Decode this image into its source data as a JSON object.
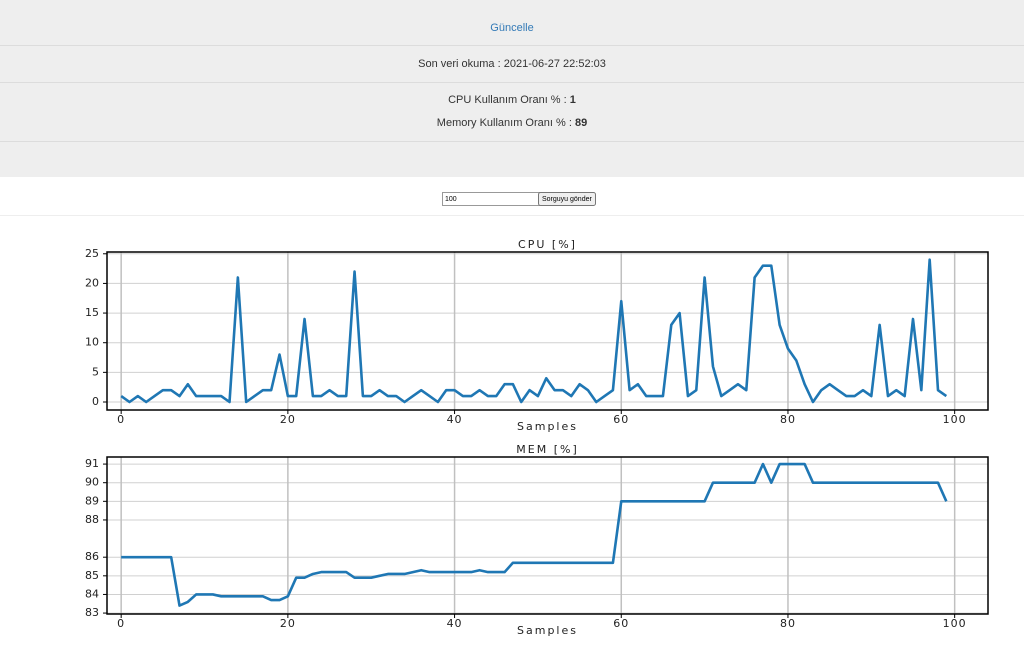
{
  "header": {
    "refresh": "Güncelle",
    "last_read": "Son veri okuma : 2021-06-27 22:52:03",
    "cpu_label": "CPU Kullanım Oranı % :",
    "cpu_value": 1,
    "mem_label": "Memory Kullanım Oranı % :",
    "mem_value": 89
  },
  "form": {
    "input_value": "100",
    "button": "Sorguyu gönder"
  },
  "chart_data": [
    {
      "type": "line",
      "title": "CPU [%]",
      "xlabel": "Samples",
      "color": "#1f77b4",
      "grid": true,
      "x": [
        0,
        1,
        2,
        3,
        4,
        5,
        6,
        7,
        8,
        9,
        10,
        11,
        12,
        13,
        14,
        15,
        16,
        17,
        18,
        19,
        20,
        21,
        22,
        23,
        24,
        25,
        26,
        27,
        28,
        29,
        30,
        31,
        32,
        33,
        34,
        35,
        36,
        37,
        38,
        39,
        40,
        41,
        42,
        43,
        44,
        45,
        46,
        47,
        48,
        49,
        50,
        51,
        52,
        53,
        54,
        55,
        56,
        57,
        58,
        59,
        60,
        61,
        62,
        63,
        64,
        65,
        66,
        67,
        68,
        69,
        70,
        71,
        72,
        73,
        74,
        75,
        76,
        77,
        78,
        79,
        80,
        81,
        82,
        83,
        84,
        85,
        86,
        87,
        88,
        89,
        90,
        91,
        92,
        93,
        94,
        95,
        96,
        97,
        98,
        99
      ],
      "values": [
        1,
        0,
        1,
        0,
        1,
        2,
        2,
        1,
        3,
        1,
        1,
        1,
        1,
        0,
        21,
        0,
        1,
        2,
        2,
        8,
        1,
        1,
        14,
        1,
        1,
        2,
        1,
        1,
        22,
        1,
        1,
        2,
        1,
        1,
        0,
        1,
        2,
        1,
        0,
        2,
        2,
        1,
        1,
        2,
        1,
        1,
        3,
        3,
        0,
        2,
        1,
        4,
        2,
        2,
        1,
        3,
        2,
        0,
        1,
        2,
        17,
        2,
        3,
        1,
        1,
        1,
        13,
        15,
        1,
        2,
        21,
        6,
        1,
        2,
        3,
        2,
        21,
        23,
        23,
        13,
        9,
        7,
        3,
        0,
        2,
        3,
        2,
        1,
        1,
        2,
        1,
        13,
        1,
        2,
        1,
        14,
        2,
        24,
        2,
        1
      ],
      "xlim": [
        -1.7,
        104
      ],
      "ylim": [
        -1.35,
        25.3
      ],
      "xticks": [
        0,
        20,
        40,
        60,
        80,
        100
      ],
      "yticks": [
        0,
        5,
        10,
        15,
        20,
        25
      ]
    },
    {
      "type": "line",
      "title": "MEM [%]",
      "xlabel": "Samples",
      "color": "#1f77b4",
      "grid": true,
      "x": [
        0,
        1,
        2,
        3,
        4,
        5,
        6,
        7,
        8,
        9,
        10,
        11,
        12,
        13,
        14,
        15,
        16,
        17,
        18,
        19,
        20,
        21,
        22,
        23,
        24,
        25,
        26,
        27,
        28,
        29,
        30,
        31,
        32,
        33,
        34,
        35,
        36,
        37,
        38,
        39,
        40,
        41,
        42,
        43,
        44,
        45,
        46,
        47,
        48,
        49,
        50,
        51,
        52,
        53,
        54,
        55,
        56,
        57,
        58,
        59,
        60,
        61,
        62,
        63,
        64,
        65,
        66,
        67,
        68,
        69,
        70,
        71,
        72,
        73,
        74,
        75,
        76,
        77,
        78,
        79,
        80,
        81,
        82,
        83,
        84,
        85,
        86,
        87,
        88,
        89,
        90,
        91,
        92,
        93,
        94,
        95,
        96,
        97,
        98,
        99
      ],
      "values": [
        86,
        86,
        86,
        86,
        86,
        86,
        86,
        83.4,
        83.6,
        84,
        84,
        84,
        83.9,
        83.9,
        83.9,
        83.9,
        83.9,
        83.9,
        83.7,
        83.7,
        83.9,
        84.9,
        84.9,
        85.1,
        85.2,
        85.2,
        85.2,
        85.2,
        84.9,
        84.9,
        84.9,
        85,
        85.1,
        85.1,
        85.1,
        85.2,
        85.3,
        85.2,
        85.2,
        85.2,
        85.2,
        85.2,
        85.2,
        85.3,
        85.2,
        85.2,
        85.2,
        85.7,
        85.7,
        85.7,
        85.7,
        85.7,
        85.7,
        85.7,
        85.7,
        85.7,
        85.7,
        85.7,
        85.7,
        85.7,
        89,
        89,
        89,
        89,
        89,
        89,
        89,
        89,
        89,
        89,
        89,
        90,
        90,
        90,
        90,
        90,
        90,
        91,
        90,
        91,
        91,
        91,
        91,
        90,
        90,
        90,
        90,
        90,
        90,
        90,
        90,
        90,
        90,
        90,
        90,
        90,
        90,
        90,
        90,
        89
      ],
      "xlim": [
        -1.7,
        104
      ],
      "ylim": [
        82.95,
        91.38
      ],
      "xticks": [
        0,
        20,
        40,
        60,
        80,
        100
      ],
      "yticks": [
        83,
        84,
        85,
        86,
        88,
        89,
        90,
        91
      ]
    }
  ]
}
